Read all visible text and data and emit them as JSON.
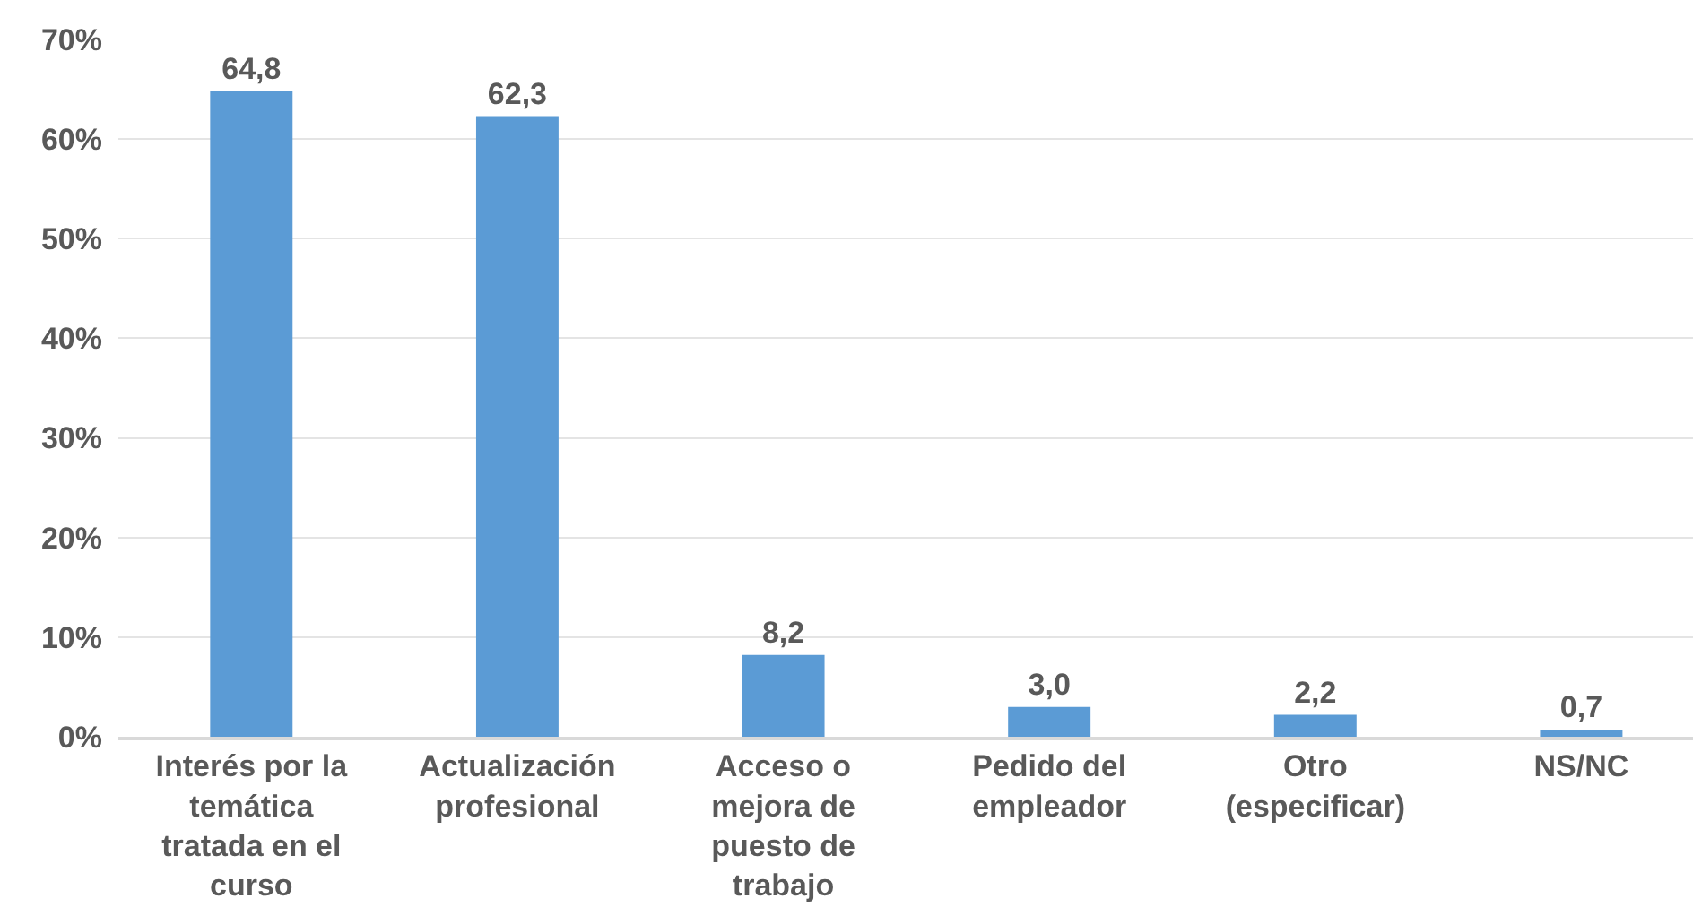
{
  "chart_data": {
    "type": "bar",
    "categories": [
      "Interés por la temática tratada en el curso",
      "Actualización profesional",
      "Acceso o mejora de puesto de trabajo",
      "Pedido del empleador",
      "Otro (especificar)",
      "NS/NC"
    ],
    "values": [
      64.8,
      62.3,
      8.2,
      3.0,
      2.2,
      0.7
    ],
    "value_labels": [
      "64,8",
      "62,3",
      "8,2",
      "3,0",
      "2,2",
      "0,7"
    ],
    "color": "#5b9bd5",
    "ylim": [
      0,
      70
    ],
    "yticks": [
      {
        "value": 0,
        "label": "0%"
      },
      {
        "value": 10,
        "label": "10%"
      },
      {
        "value": 20,
        "label": "20%"
      },
      {
        "value": 30,
        "label": "30%"
      },
      {
        "value": 40,
        "label": "40%"
      },
      {
        "value": 50,
        "label": "50%"
      },
      {
        "value": 60,
        "label": "60%"
      },
      {
        "value": 70,
        "label": "70%"
      }
    ],
    "grid": "y"
  }
}
